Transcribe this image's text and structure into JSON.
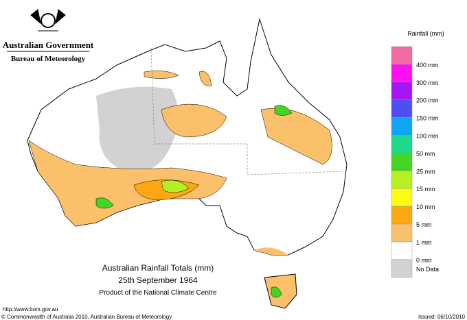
{
  "header": {
    "agency": "Australian Government",
    "bureau": "Bureau of Meteorology"
  },
  "map": {
    "title": "Australian Rainfall Totals (mm)",
    "date": "25th September 1964",
    "product": "Product of the National Climate Centre"
  },
  "legend": {
    "title": "Rainfall (mm)",
    "items": [
      {
        "label": "400 mm",
        "color": "#f06aa4"
      },
      {
        "label": "300 mm",
        "color": "#ff10ee"
      },
      {
        "label": "200 mm",
        "color": "#a416f4"
      },
      {
        "label": "150 mm",
        "color": "#4e4ef2"
      },
      {
        "label": "100 mm",
        "color": "#10a6f4"
      },
      {
        "label": "50 mm",
        "color": "#1ed98c"
      },
      {
        "label": "25 mm",
        "color": "#44d424"
      },
      {
        "label": "15 mm",
        "color": "#b6f022"
      },
      {
        "label": "10 mm",
        "color": "#fdfd10"
      },
      {
        "label": "5 mm",
        "color": "#fba814"
      },
      {
        "label": "1 mm",
        "color": "#fbc06a"
      },
      {
        "label": "0 mm",
        "color": "#ffffff"
      },
      {
        "label": "No Data",
        "color": "#d2d2d2"
      }
    ]
  },
  "footer": {
    "url": "http://www.bom.gov.au",
    "copyright": "© Commonwealth of Australia 2010, Australian Bureau of Meteorology",
    "issued": "Issued: 06/10/2010"
  }
}
